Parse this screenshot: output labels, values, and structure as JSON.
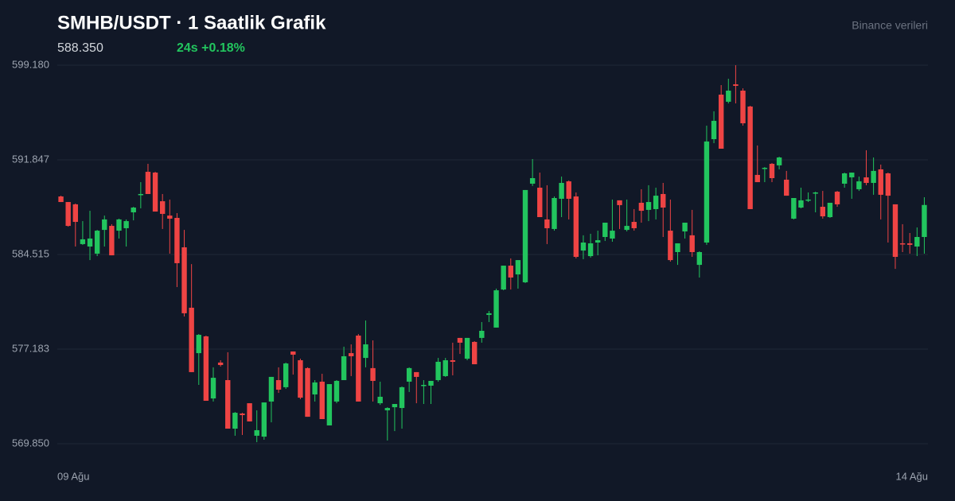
{
  "chart_data": {
    "type": "candlestick",
    "title": "SMHB/USDT · 1 Saatlik Grafik",
    "last_price": "588.350",
    "change": "24s +0.18%",
    "source": "Binance verileri",
    "up_color": "#22c55e",
    "down_color": "#ef4444",
    "grid": true,
    "ylim": [
      569.85,
      599.18
    ],
    "yticks": [
      {
        "value": 569.85,
        "label": "569.850"
      },
      {
        "value": 577.183,
        "label": "577.183"
      },
      {
        "value": 584.515,
        "label": "584.515"
      },
      {
        "value": 591.847,
        "label": "591.847"
      },
      {
        "value": 599.18,
        "label": "599.180"
      }
    ],
    "categories": [
      "09 Ağu",
      null,
      null,
      null,
      null,
      null,
      null,
      null,
      null,
      null,
      null,
      null,
      null,
      null,
      null,
      null,
      null,
      null,
      null,
      null,
      null,
      null,
      null,
      null,
      null,
      null,
      null,
      null,
      null,
      null,
      null,
      null,
      null,
      null,
      null,
      null,
      null,
      null,
      null,
      null,
      null,
      null,
      null,
      null,
      null,
      null,
      null,
      null,
      null,
      null,
      null,
      null,
      null,
      null,
      null,
      null,
      null,
      null,
      null,
      null,
      null,
      null,
      null,
      null,
      null,
      null,
      null,
      null,
      null,
      null,
      null,
      null,
      null,
      null,
      null,
      null,
      null,
      null,
      null,
      null,
      null,
      null,
      null,
      null,
      null,
      null,
      null,
      null,
      null,
      null,
      null,
      null,
      null,
      null,
      null,
      null,
      null,
      null,
      null,
      null,
      null,
      null,
      null,
      null,
      null,
      null,
      null,
      null,
      null,
      null,
      null,
      null,
      null,
      null,
      null,
      null,
      null,
      null,
      null,
      "14 Ağu"
    ],
    "open": [
      589.01,
      588.58,
      588.4,
      585.32,
      585.13,
      584.58,
      586.42,
      586.73,
      586.36,
      586.55,
      587.78,
      589.14,
      590.92,
      590.86,
      588.64,
      587.53,
      587.35,
      585.07,
      580.39,
      576.87,
      578.17,
      573.36,
      576.14,
      574.78,
      571.02,
      572.19,
      572.99,
      570.47,
      570.4,
      573.12,
      574.78,
      574.23,
      577.0,
      576.32,
      575.71,
      573.67,
      574.66,
      571.27,
      573.12,
      574.78,
      576.87,
      578.23,
      576.5,
      575.71,
      572.99,
      572.44,
      572.68,
      572.62,
      574.66,
      575.4,
      574.35,
      574.35,
      574.78,
      575.09,
      576.32,
      578.05,
      576.44,
      577.74,
      578.05,
      579.83,
      578.85,
      581.8,
      583.65,
      582.97,
      582.36,
      590.0,
      589.69,
      587.23,
      586.49,
      588.83,
      590.18,
      589.01,
      584.82,
      584.39,
      585.44,
      585.87,
      585.75,
      588.71,
      586.42,
      587.04,
      588.52,
      587.97,
      588.03,
      589.2,
      586.36,
      584.7,
      586.3,
      586.0,
      583.71,
      585.44,
      593.45,
      596.9,
      596.35,
      597.7,
      597.21,
      595.98,
      590.68,
      591.17,
      591.54,
      591.42,
      590.31,
      587.29,
      588.15,
      588.71,
      589.26,
      588.21,
      587.41,
      589.38,
      590.0,
      590.49,
      589.57,
      590.49,
      590.06,
      591.11,
      590.8,
      588.4,
      585.38,
      585.38,
      585.13,
      585.87
    ],
    "high": [
      589.07,
      588.58,
      588.46,
      587.1,
      587.9,
      586.42,
      587.53,
      586.86,
      587.29,
      587.23,
      588.21,
      590.12,
      591.54,
      590.92,
      589.2,
      588.77,
      587.72,
      586.42,
      583.77,
      578.35,
      578.23,
      575.77,
      576.32,
      576.94,
      572.31,
      572.25,
      572.99,
      572.44,
      573.05,
      575.03,
      575.77,
      576.14,
      577.0,
      576.44,
      575.77,
      574.78,
      575.27,
      574.47,
      574.78,
      577.37,
      577.55,
      578.35,
      579.4,
      577.86,
      574.66,
      572.68,
      572.93,
      574.29,
      575.77,
      575.4,
      574.78,
      574.72,
      576.5,
      576.5,
      577.68,
      578.05,
      578.05,
      577.8,
      579.28,
      580.14,
      581.87,
      583.65,
      584.21,
      584.08,
      589.51,
      591.91,
      590.86,
      589.88,
      589.01,
      590.55,
      590.25,
      589.32,
      586.0,
      586.12,
      586.36,
      586.98,
      588.77,
      588.71,
      588.77,
      588.03,
      589.57,
      589.88,
      589.69,
      590.06,
      588.77,
      585.38,
      586.98,
      587.97,
      584.76,
      594.5,
      595.61,
      597.64,
      598.13,
      599.18,
      597.39,
      596.04,
      592.96,
      591.29,
      591.6,
      592.09,
      590.99,
      588.89,
      589.69,
      589.32,
      589.38,
      589.44,
      588.52,
      589.44,
      590.86,
      590.86,
      590.55,
      592.59,
      592.03,
      591.48,
      590.86,
      588.4,
      586.86,
      586.18,
      586.61,
      588.95
    ],
    "low": [
      588.58,
      586.67,
      585.13,
      585.26,
      584.08,
      584.39,
      585.13,
      584.45,
      585.75,
      585.13,
      587.16,
      588.09,
      589.2,
      587.84,
      586.49,
      584.58,
      581.99,
      579.71,
      575.4,
      574.41,
      573.18,
      573.12,
      575.83,
      571.02,
      570.47,
      570.53,
      571.58,
      569.97,
      570.16,
      571.51,
      573.79,
      574.1,
      575.21,
      573.3,
      571.94,
      573.12,
      571.76,
      571.27,
      572.99,
      574.78,
      575.09,
      573.12,
      575.77,
      573.12,
      572.86,
      570.1,
      570.83,
      571.02,
      573.86,
      572.99,
      572.93,
      572.93,
      574.66,
      575.03,
      575.15,
      576.81,
      576.32,
      576.01,
      577.68,
      579.28,
      578.85,
      581.74,
      581.8,
      581.87,
      582.3,
      589.82,
      587.41,
      585.32,
      586.36,
      587.41,
      587.23,
      584.21,
      584.15,
      584.27,
      584.45,
      585.56,
      585.5,
      586.49,
      586.3,
      586.36,
      586.98,
      587.1,
      587.23,
      585.87,
      583.96,
      583.71,
      585.75,
      584.33,
      582.73,
      585.26,
      593.14,
      592.71,
      596.22,
      596.22,
      594.5,
      588.03,
      590.12,
      590.12,
      590.12,
      591.11,
      589.07,
      587.23,
      588.09,
      588.58,
      587.78,
      587.29,
      587.35,
      588.21,
      589.69,
      588.83,
      589.44,
      589.88,
      589.14,
      587.23,
      585.44,
      583.4,
      584.7,
      584.58,
      584.39,
      584.58
    ],
    "close": [
      588.58,
      586.73,
      587.04,
      585.69,
      585.75,
      586.36,
      587.23,
      584.45,
      587.23,
      587.1,
      588.15,
      589.2,
      589.2,
      587.84,
      587.66,
      587.29,
      583.84,
      579.96,
      575.4,
      578.29,
      573.18,
      574.96,
      575.95,
      571.02,
      572.25,
      572.07,
      571.58,
      570.9,
      573.05,
      575.03,
      574.04,
      576.07,
      576.75,
      573.42,
      571.94,
      574.6,
      571.76,
      574.47,
      574.72,
      576.63,
      576.63,
      573.12,
      577.55,
      574.72,
      573.49,
      572.62,
      572.93,
      574.23,
      575.71,
      575.03,
      574.41,
      574.72,
      576.2,
      576.32,
      576.2,
      577.68,
      578.05,
      576.01,
      578.6,
      579.96,
      581.74,
      583.65,
      582.73,
      584.08,
      589.51,
      590.43,
      587.41,
      586.55,
      588.89,
      590.06,
      588.83,
      584.33,
      585.44,
      585.38,
      585.62,
      586.98,
      586.36,
      588.34,
      586.73,
      586.55,
      587.9,
      588.58,
      589.07,
      588.15,
      584.08,
      585.38,
      586.98,
      584.7,
      584.7,
      593.27,
      594.87,
      592.71,
      597.21,
      597.58,
      594.68,
      588.03,
      590.12,
      591.23,
      590.43,
      592.03,
      589.07,
      588.89,
      588.71,
      588.77,
      589.32,
      587.47,
      588.52,
      588.4,
      590.8,
      590.86,
      590.18,
      590.06,
      590.99,
      589.14,
      589.07,
      584.33,
      585.32,
      585.26,
      585.87,
      588.35
    ]
  }
}
